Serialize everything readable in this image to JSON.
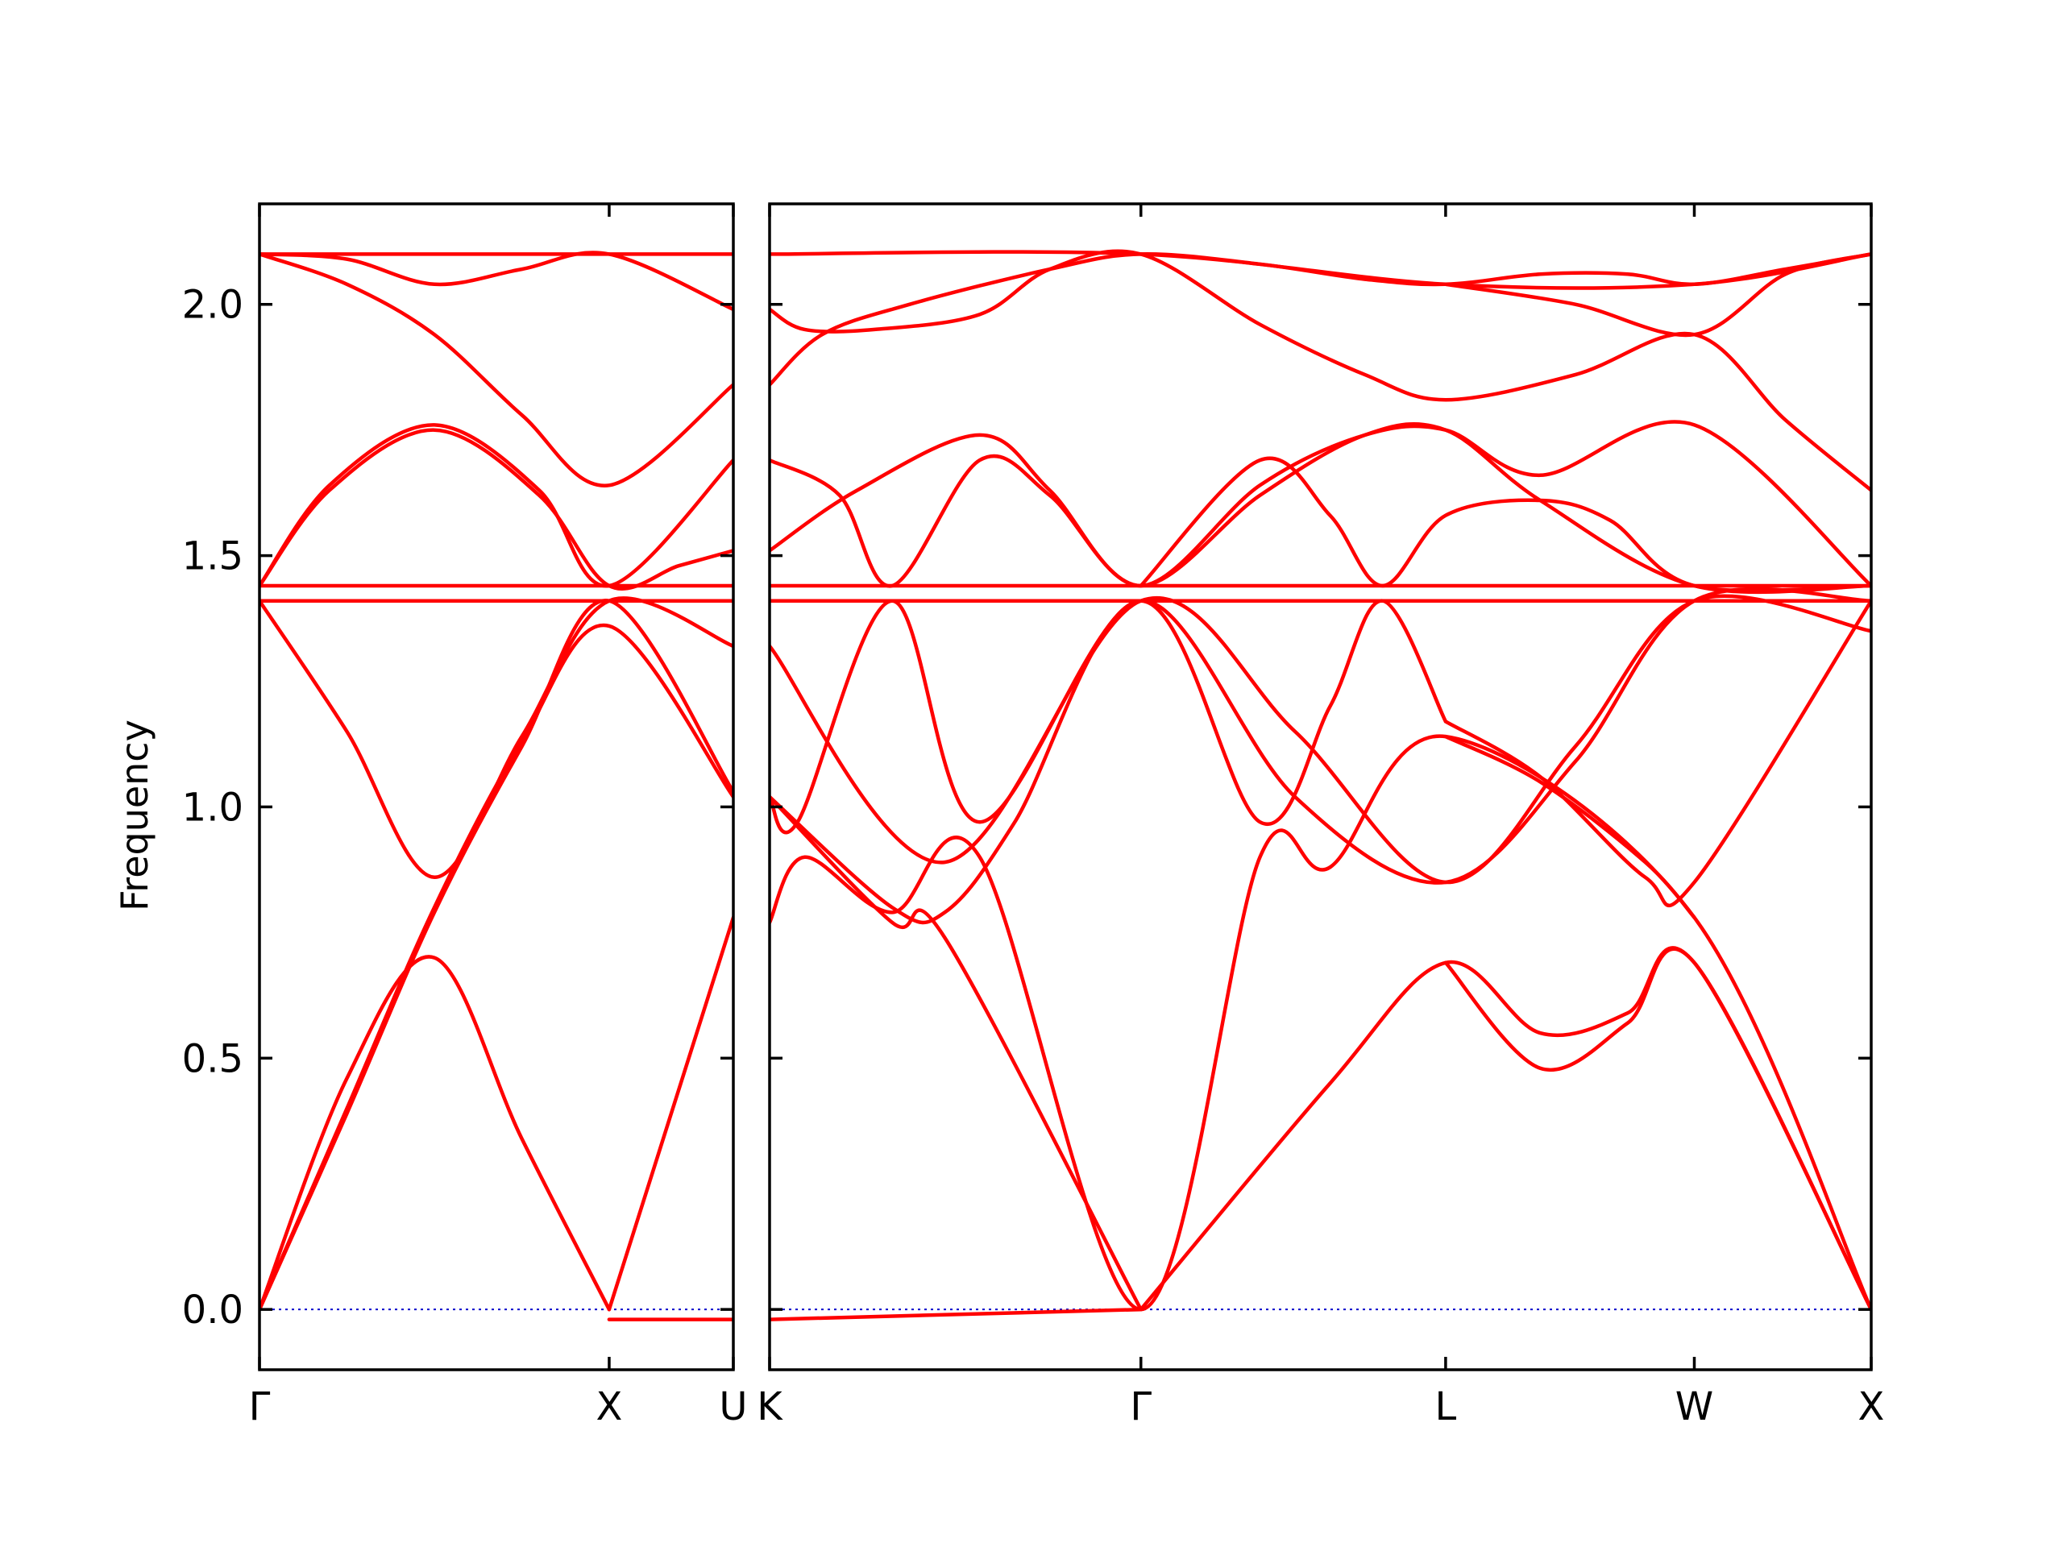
{
  "chart_data": {
    "type": "line",
    "ylabel": "Frequency",
    "ylim": [
      -0.12,
      2.2
    ],
    "yticks": [
      0.0,
      0.5,
      1.0,
      1.5,
      2.0
    ],
    "ytick_labels": [
      "0.0",
      "0.5",
      "1.0",
      "1.5",
      "2.0"
    ],
    "grid": false,
    "colors": {
      "bands": "#ff0000",
      "zero_line": "#0000cc",
      "frame": "#000000"
    },
    "panels": [
      {
        "name": "Γ-X-U",
        "xlim": [
          0,
          1.355
        ],
        "ticks": [
          0,
          1.0,
          1.355
        ],
        "tick_labels": [
          "Γ",
          "X",
          "U"
        ],
        "series": [
          {
            "x": [
              0,
              0.25,
              0.5,
              0.75,
              1.0,
              1.355
            ],
            "y": [
              2.1,
              2.04,
              1.94,
              1.78,
              1.64,
              1.84
            ]
          },
          {
            "x": [
              0,
              0.25,
              0.5,
              0.75,
              1.0,
              1.355
            ],
            "y": [
              2.1,
              2.09,
              2.04,
              2.07,
              2.1,
              1.99
            ]
          },
          {
            "x": [
              0,
              1.0,
              1.355
            ],
            "y": [
              2.1,
              2.1,
              2.1
            ]
          },
          {
            "x": [
              0,
              0.2,
              0.5,
              0.8,
              1.0,
              1.355
            ],
            "y": [
              1.44,
              1.64,
              1.76,
              1.63,
              1.44,
              1.69
            ]
          },
          {
            "x": [
              0,
              0.2,
              0.5,
              0.8,
              1.0,
              1.2,
              1.355
            ],
            "y": [
              1.44,
              1.63,
              1.75,
              1.62,
              1.44,
              1.48,
              1.51
            ]
          },
          {
            "x": [
              0,
              0.5,
              1.0,
              1.355
            ],
            "y": [
              1.44,
              1.44,
              1.44,
              1.44
            ]
          },
          {
            "x": [
              0,
              0.5,
              1.0,
              1.355
            ],
            "y": [
              1.41,
              1.41,
              1.41,
              1.41
            ]
          },
          {
            "x": [
              0,
              0.25,
              0.5,
              0.75,
              1.0,
              1.355
            ],
            "y": [
              1.41,
              1.15,
              0.86,
              1.14,
              1.41,
              1.32
            ]
          },
          {
            "x": [
              0,
              0.25,
              0.5,
              0.75,
              1.0,
              1.355
            ],
            "y": [
              0,
              0.4,
              0.8,
              1.13,
              1.36,
              1.02
            ]
          },
          {
            "x": [
              0,
              0.25,
              0.5,
              0.75,
              1.0,
              1.355
            ],
            "y": [
              0,
              0.39,
              0.79,
              1.12,
              1.41,
              1.03
            ]
          },
          {
            "x": [
              0,
              0.25,
              0.5,
              0.75,
              1.0
            ],
            "y": [
              0,
              0.46,
              0.7,
              0.34,
              0.0
            ]
          },
          {
            "x": [
              1.0,
              1.355
            ],
            "y": [
              0.0,
              0.78
            ]
          },
          {
            "x": [
              1.0,
              1.355
            ],
            "y": [
              -0.02,
              -0.02
            ]
          }
        ]
      },
      {
        "name": "K-Γ-L-W-X",
        "xlim": [
          0,
          3.145
        ],
        "ticks": [
          0,
          1.06,
          1.93,
          2.64,
          3.145
        ],
        "tick_labels": [
          "K",
          "Γ",
          "L",
          "W",
          "X"
        ],
        "series": [
          {
            "x": [
              0,
              1.06,
              1.93,
              2.64,
              3.145
            ],
            "y": [
              2.1,
              2.1,
              2.04,
              2.04,
              2.1
            ]
          },
          {
            "x": [
              0,
              0.15,
              0.4,
              0.8,
              1.06,
              1.4,
              1.7,
              1.93,
              2.2,
              2.45,
              2.64,
              2.9,
              3.145
            ],
            "y": [
              1.84,
              1.94,
              2.0,
              2.07,
              2.1,
              2.08,
              2.05,
              2.04,
              2.06,
              2.06,
              2.04,
              2.07,
              2.1
            ]
          },
          {
            "x": [
              0,
              0.1,
              0.3,
              0.6,
              0.8,
              1.06,
              1.4,
              1.7,
              1.93,
              2.3,
              2.64,
              2.9,
              3.145
            ],
            "y": [
              1.99,
              1.95,
              1.95,
              1.98,
              2.07,
              2.1,
              1.96,
              1.86,
              1.81,
              1.86,
              1.94,
              1.77,
              1.63
            ]
          },
          {
            "x": [
              1.93,
              2.3,
              2.64,
              2.9,
              3.145
            ],
            "y": [
              2.04,
              2.0,
              1.94,
              2.06,
              2.1
            ]
          },
          {
            "x": [
              0,
              0.25,
              0.6,
              0.8,
              1.06,
              1.4,
              1.7,
              1.93,
              2.2,
              2.64,
              3.145
            ],
            "y": [
              1.51,
              1.63,
              1.74,
              1.63,
              1.44,
              1.64,
              1.74,
              1.75,
              1.66,
              1.76,
              1.44
            ]
          },
          {
            "x": [
              0,
              0.2,
              0.35,
              0.6,
              0.8,
              1.06,
              1.4,
              1.7,
              1.93,
              2.2,
              2.64,
              3.145
            ],
            "y": [
              1.69,
              1.62,
              1.44,
              1.69,
              1.62,
              1.44,
              1.62,
              1.74,
              1.75,
              1.61,
              1.44,
              1.44
            ]
          },
          {
            "x": [
              1.06,
              1.4,
              1.6,
              1.75,
              1.93,
              2.2,
              2.4,
              2.64,
              3.145
            ],
            "y": [
              1.44,
              1.69,
              1.58,
              1.44,
              1.58,
              1.61,
              1.57,
              1.44,
              1.44
            ]
          },
          {
            "x": [
              0,
              1.06,
              2.64,
              3.145
            ],
            "y": [
              1.44,
              1.44,
              1.44,
              1.44
            ]
          },
          {
            "x": [
              0,
              0.35,
              1.06,
              1.93,
              2.64,
              3.145
            ],
            "y": [
              1.41,
              1.41,
              1.41,
              1.41,
              1.41,
              1.41
            ]
          },
          {
            "x": [
              0,
              0.08,
              0.35,
              0.6,
              1.06,
              1.4,
              1.6,
              1.75,
              1.93
            ],
            "y": [
              1.02,
              0.97,
              1.41,
              0.97,
              1.41,
              0.97,
              1.2,
              1.41,
              1.17
            ]
          },
          {
            "x": [
              0,
              0.5,
              1.06,
              1.5,
              1.93,
              2.3,
              2.64,
              3.145
            ],
            "y": [
              1.32,
              0.89,
              1.41,
              1.15,
              0.85,
              1.12,
              1.41,
              1.35
            ]
          },
          {
            "x": [
              0,
              0.35,
              0.5,
              0.7,
              1.06,
              1.5,
              1.93,
              2.3,
              2.64,
              3.145
            ],
            "y": [
              1.02,
              0.8,
              0.79,
              0.97,
              1.41,
              1.02,
              0.85,
              1.09,
              1.41,
              1.41
            ]
          },
          {
            "x": [
              1.93,
              2.2,
              2.5,
              2.64,
              3.145
            ],
            "y": [
              1.17,
              1.06,
              0.86,
              0.85,
              1.41
            ]
          },
          {
            "x": [
              1.93,
              2.2,
              2.5,
              2.64
            ],
            "y": [
              1.14,
              1.05,
              0.89,
              0.78
            ]
          },
          {
            "x": [
              0,
              0.1,
              0.35,
              0.6,
              1.06,
              1.4,
              1.6,
              1.93,
              2.64,
              3.145
            ],
            "y": [
              0.77,
              0.9,
              0.79,
              0.9,
              0.0,
              0.9,
              0.88,
              1.14,
              0.78,
              0.0
            ]
          },
          {
            "x": [
              0,
              0.35,
              0.5,
              1.06
            ],
            "y": [
              1.02,
              0.77,
              0.74,
              0.0
            ]
          },
          {
            "x": [
              1.06,
              1.6,
              1.93,
              2.2,
              2.45,
              2.64,
              3.145
            ],
            "y": [
              0.0,
              0.45,
              0.69,
              0.55,
              0.59,
              0.69,
              0.0
            ]
          },
          {
            "x": [
              1.93,
              2.2,
              2.45,
              2.64,
              3.145
            ],
            "y": [
              0.69,
              0.48,
              0.57,
              0.69,
              0.0
            ]
          },
          {
            "x": [
              0,
              1.06
            ],
            "y": [
              -0.02,
              0.0
            ]
          }
        ]
      }
    ]
  }
}
